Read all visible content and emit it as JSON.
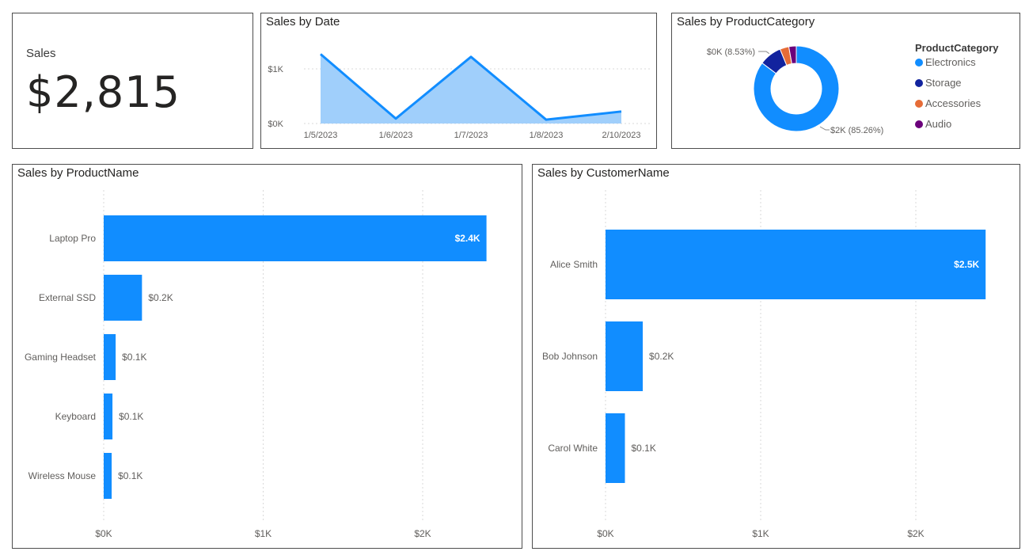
{
  "kpi": {
    "label": "Sales",
    "value": "$2,815"
  },
  "colors": {
    "primary": "#118DFF",
    "area_fill": "#A0CFFB",
    "storage": "#12239E",
    "accessories": "#E66C37",
    "audio": "#6B007B",
    "grid": "#d9d9d9",
    "axis_text": "#605E5C",
    "border": "#4d4d4d"
  },
  "chart_data": [
    {
      "id": "sales-by-date",
      "type": "area",
      "title": "Sales by Date",
      "x": [
        "1/5/2023",
        "1/6/2023",
        "1/7/2023",
        "1/8/2023",
        "2/10/2023"
      ],
      "values": [
        1270,
        90,
        1220,
        70,
        220
      ],
      "y_ticks": [
        {
          "value": 0,
          "label": "$0K"
        },
        {
          "value": 1000,
          "label": "$1K"
        }
      ],
      "ylim": [
        0,
        1300
      ],
      "grid": true
    },
    {
      "id": "sales-by-productcategory",
      "type": "pie",
      "title": "Sales by ProductCategory",
      "legend_title": "ProductCategory",
      "legend_position": "right",
      "slices": [
        {
          "label": "Electronics",
          "value": 85.26,
          "color": "#118DFF"
        },
        {
          "label": "Storage",
          "value": 8.53,
          "color": "#12239E"
        },
        {
          "label": "Accessories",
          "value": 3.4,
          "color": "#E66C37"
        },
        {
          "label": "Audio",
          "value": 2.81,
          "color": "#6B007B"
        }
      ],
      "data_labels": [
        {
          "slice": "Electronics",
          "text": "$2K (85.26%)"
        },
        {
          "slice": "Storage",
          "text": "$0K (8.53%)"
        }
      ]
    },
    {
      "id": "sales-by-productname",
      "type": "bar",
      "orientation": "horizontal",
      "title": "Sales by ProductName",
      "categories": [
        "Laptop Pro",
        "External SSD",
        "Gaming Headset",
        "Keyboard",
        "Wireless Mouse"
      ],
      "values": [
        2400,
        240,
        75,
        55,
        50
      ],
      "data_labels": [
        "$2.4K",
        "$0.2K",
        "$0.1K",
        "$0.1K",
        "$0.1K"
      ],
      "x_ticks": [
        {
          "value": 0,
          "label": "$0K"
        },
        {
          "value": 1000,
          "label": "$1K"
        },
        {
          "value": 2000,
          "label": "$2K"
        }
      ],
      "xlim": [
        0,
        2450
      ],
      "grid": true
    },
    {
      "id": "sales-by-customername",
      "type": "bar",
      "orientation": "horizontal",
      "title": "Sales by CustomerName",
      "categories": [
        "Alice Smith",
        "Bob Johnson",
        "Carol White"
      ],
      "values": [
        2450,
        240,
        125
      ],
      "data_labels": [
        "$2.5K",
        "$0.2K",
        "$0.1K"
      ],
      "x_ticks": [
        {
          "value": 0,
          "label": "$0K"
        },
        {
          "value": 1000,
          "label": "$1K"
        },
        {
          "value": 2000,
          "label": "$2K"
        }
      ],
      "xlim": [
        0,
        2450
      ],
      "grid": true
    }
  ]
}
